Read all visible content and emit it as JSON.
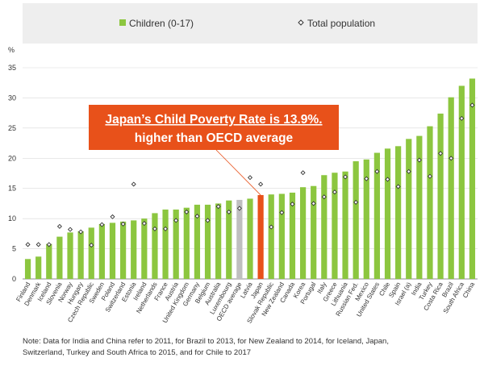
{
  "chart_data": {
    "type": "bar",
    "ylabel": "%",
    "ylim": [
      0,
      35
    ],
    "yticks": [
      0,
      5,
      10,
      15,
      20,
      25,
      30,
      35
    ],
    "grid": true,
    "legend_position": "top",
    "categories": [
      "Finland",
      "Denmark",
      "Iceland",
      "Slovenia",
      "Norway",
      "Hungary",
      "Czech Republic",
      "Sweden",
      "Poland",
      "Switzerland",
      "Estonia",
      "Ireland",
      "Netherlands",
      "France",
      "Austria",
      "United Kingdom",
      "Germany",
      "Belgium",
      "Australia",
      "Luxembourg",
      "OECD average",
      "Latvia",
      "Japan",
      "Slovak Republic",
      "New Zealand",
      "Canada",
      "Korea",
      "Portugal",
      "Italy",
      "Greece",
      "Lithuania",
      "Russian Fed.",
      "Mexico",
      "United States",
      "Chile",
      "Spain",
      "Israel (a)",
      "India",
      "Turkey",
      "Costa Rica",
      "Brazil",
      "South Africa",
      "China"
    ],
    "series": [
      {
        "name": "Children (0-17)",
        "color": "#8cc63f",
        "values": [
          3.3,
          3.7,
          5.8,
          7.0,
          7.7,
          7.9,
          8.5,
          9.1,
          9.3,
          9.5,
          9.7,
          10.0,
          10.9,
          11.5,
          11.5,
          11.8,
          12.3,
          12.3,
          12.5,
          13.0,
          13.1,
          13.3,
          13.9,
          14.0,
          14.1,
          14.3,
          15.2,
          15.4,
          17.2,
          17.6,
          17.8,
          19.5,
          19.8,
          20.9,
          21.6,
          22.0,
          23.2,
          23.7,
          25.3,
          27.4,
          30.1,
          32.0,
          33.2
        ]
      },
      {
        "name": "Total population",
        "marker": "diamond",
        "values": [
          5.7,
          5.7,
          5.7,
          8.7,
          8.2,
          7.8,
          5.6,
          9.0,
          10.3,
          9.1,
          15.7,
          9.2,
          8.3,
          8.3,
          9.7,
          11.1,
          10.4,
          9.7,
          12.0,
          11.1,
          11.7,
          16.8,
          15.7,
          8.6,
          11.0,
          12.4,
          17.6,
          12.5,
          13.6,
          14.4,
          16.9,
          12.7,
          16.6,
          17.8,
          16.5,
          15.3,
          17.8,
          19.7,
          17.0,
          20.8,
          20.0,
          26.6,
          28.8
        ]
      }
    ],
    "highlight": {
      "OECD average": "#bfbfbf",
      "Japan": "#e8511a"
    },
    "annotation": {
      "line1": "Japan’s Child Poverty Rate is 13.9%.",
      "line2": "higher than OECD average",
      "box_color": "#e8511a",
      "points_to": "Japan"
    },
    "note_line1": "Note: Data for India and China refer to 2011, for Brazil to 2013, for New Zealand to 2014, for Iceland, Japan,",
    "note_line2": "Switzerland, Turkey and South Africa to 2015, and for Chile to 2017"
  }
}
